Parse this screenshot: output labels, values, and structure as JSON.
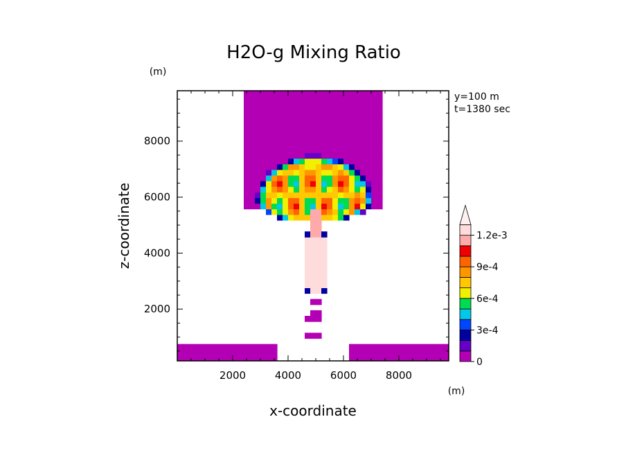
{
  "chart_data": {
    "type": "heatmap",
    "title": "H2O-g Mixing Ratio",
    "xlabel": "x-coordinate",
    "ylabel": "z-coordinate",
    "x_unit": "(m)",
    "y_unit": "(m)",
    "annotations": [
      "y=100 m",
      "t=1380 sec"
    ],
    "xlim": [
      0,
      9800
    ],
    "ylim": [
      150,
      9800
    ],
    "x_ticks": [
      2000,
      4000,
      6000,
      8000
    ],
    "y_ticks": [
      2000,
      4000,
      6000,
      8000
    ],
    "x_tick_labels": [
      "2000",
      "4000",
      "6000",
      "8000"
    ],
    "y_tick_labels": [
      "2000",
      "4000",
      "6000",
      "8000"
    ],
    "colorbar": {
      "levels": [
        0,
        0.0001,
        0.0002,
        0.0003,
        0.0004,
        0.0005,
        0.0006,
        0.0007,
        0.0008,
        0.0009,
        0.001,
        0.0011,
        0.0012
      ],
      "colors": [
        "#b400b4",
        "#6400c8",
        "#0000a0",
        "#0046ff",
        "#00c8e6",
        "#00dc50",
        "#f0f000",
        "#ffc800",
        "#ff9600",
        "#ff6400",
        "#f00000",
        "#ffaaaa",
        "#ffdcdc"
      ],
      "labels": [
        {
          "level": 0,
          "text": "0"
        },
        {
          "level": 0.0003,
          "text": "3e-4"
        },
        {
          "level": 0.0006,
          "text": "6e-4"
        },
        {
          "level": 0.0009,
          "text": "9e-4"
        },
        {
          "level": 0.0012,
          "text": "1.2e-3"
        }
      ],
      "extend_max": true
    },
    "features": {
      "upper_column": {
        "x_range": [
          2500,
          7400
        ],
        "z_range": [
          5600,
          9800
        ],
        "level": 0
      },
      "cap": {
        "x_center": 4950,
        "z_center": 5900,
        "x_half_width": 2100,
        "z_top": 7500
      },
      "stem_core_max": {
        "x": 5000,
        "z": 5000,
        "level": 0.0011
      },
      "low_layer": {
        "z_range": [
          150,
          750
        ],
        "level": 0
      }
    }
  }
}
